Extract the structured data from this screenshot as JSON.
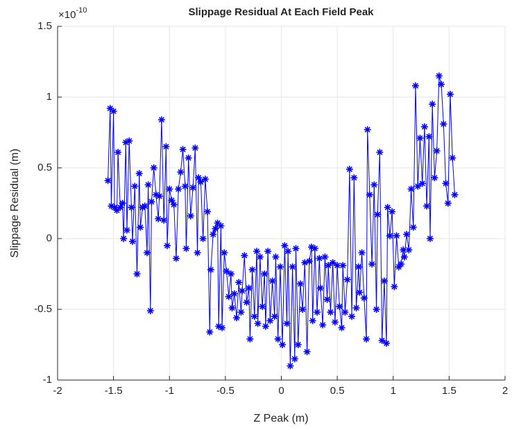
{
  "chart_data": {
    "type": "line",
    "title": "Slippage Residual At Each Field Peak",
    "x_label": "Z Peak (m)",
    "y_label": "Slippage Residual (m)",
    "y_multiplier_base": "×10",
    "y_multiplier_exponent": "-10",
    "color": "#0000ff",
    "marker": "asterisk",
    "grid": true,
    "xlim": [
      -2,
      2
    ],
    "xticks": [
      -2,
      -1.5,
      -1,
      -0.5,
      0,
      0.5,
      1,
      1.5,
      2
    ],
    "ylim": [
      -1,
      1.5
    ],
    "yticks": [
      -1,
      -0.5,
      0,
      0.5,
      1,
      1.5
    ],
    "x": [
      -1.55,
      -1.53,
      -1.52,
      -1.5,
      -1.49,
      -1.47,
      -1.46,
      -1.44,
      -1.42,
      -1.41,
      -1.39,
      -1.38,
      -1.36,
      -1.34,
      -1.33,
      -1.31,
      -1.29,
      -1.27,
      -1.26,
      -1.24,
      -1.22,
      -1.2,
      -1.19,
      -1.17,
      -1.16,
      -1.14,
      -1.12,
      -1.1,
      -1.09,
      -1.07,
      -1.05,
      -1.03,
      -1.02,
      -1.0,
      -0.98,
      -0.96,
      -0.94,
      -0.92,
      -0.9,
      -0.88,
      -0.86,
      -0.85,
      -0.83,
      -0.81,
      -0.79,
      -0.77,
      -0.75,
      -0.74,
      -0.72,
      -0.7,
      -0.68,
      -0.66,
      -0.64,
      -0.63,
      -0.61,
      -0.59,
      -0.57,
      -0.56,
      -0.54,
      -0.53,
      -0.51,
      -0.49,
      -0.47,
      -0.45,
      -0.44,
      -0.42,
      -0.4,
      -0.38,
      -0.36,
      -0.35,
      -0.33,
      -0.31,
      -0.29,
      -0.28,
      -0.26,
      -0.24,
      -0.22,
      -0.21,
      -0.19,
      -0.17,
      -0.15,
      -0.14,
      -0.12,
      -0.1,
      -0.08,
      -0.06,
      -0.05,
      -0.03,
      -0.01,
      0.01,
      0.03,
      0.05,
      0.06,
      0.08,
      0.1,
      0.12,
      0.13,
      0.15,
      0.17,
      0.19,
      0.21,
      0.23,
      0.25,
      0.27,
      0.28,
      0.3,
      0.32,
      0.34,
      0.35,
      0.37,
      0.39,
      0.41,
      0.42,
      0.44,
      0.46,
      0.48,
      0.5,
      0.52,
      0.54,
      0.55,
      0.57,
      0.59,
      0.61,
      0.63,
      0.65,
      0.67,
      0.69,
      0.7,
      0.72,
      0.74,
      0.76,
      0.77,
      0.79,
      0.81,
      0.83,
      0.85,
      0.86,
      0.88,
      0.9,
      0.92,
      0.94,
      0.95,
      0.97,
      0.99,
      1.01,
      1.03,
      1.05,
      1.07,
      1.09,
      1.1,
      1.12,
      1.14,
      1.16,
      1.18,
      1.2,
      1.22,
      1.24,
      1.26,
      1.28,
      1.3,
      1.32,
      1.33,
      1.35,
      1.37,
      1.39,
      1.41,
      1.43,
      1.45,
      1.47,
      1.49,
      1.51,
      1.53,
      1.55
    ],
    "values": [
      0.41,
      0.92,
      0.23,
      0.9,
      0.22,
      0.2,
      0.61,
      0.22,
      0.25,
      0.0,
      0.68,
      0.06,
      0.69,
      0.22,
      -0.02,
      0.37,
      -0.25,
      0.46,
      0.08,
      0.22,
      0.23,
      -0.1,
      0.38,
      -0.51,
      0.26,
      0.5,
      0.31,
      0.14,
      0.3,
      0.84,
      0.13,
      0.65,
      -0.05,
      0.35,
      0.27,
      0.24,
      -0.14,
      0.35,
      0.47,
      0.63,
      0.37,
      -0.07,
      0.57,
      0.16,
      0.36,
      0.64,
      -0.1,
      0.43,
      0.4,
      0.0,
      0.42,
      0.19,
      -0.66,
      -0.22,
      0.03,
      0.07,
      0.11,
      -0.62,
      0.09,
      -0.63,
      -0.1,
      -0.23,
      -0.41,
      -0.25,
      -0.49,
      -0.39,
      -0.56,
      -0.31,
      -0.52,
      -0.37,
      -0.12,
      -0.45,
      -0.35,
      -0.71,
      -0.22,
      -0.55,
      -0.09,
      -0.6,
      -0.13,
      -0.48,
      -0.25,
      -0.62,
      -0.09,
      -0.58,
      -0.3,
      -0.55,
      -0.13,
      -0.71,
      -0.2,
      -0.75,
      -0.05,
      -0.6,
      -0.09,
      -0.9,
      -0.2,
      -0.85,
      -0.07,
      -0.75,
      -0.32,
      -0.5,
      -0.17,
      -0.8,
      -0.16,
      -0.06,
      -0.58,
      -0.07,
      -0.52,
      -0.14,
      -0.35,
      -0.61,
      -0.13,
      -0.43,
      -0.19,
      -0.52,
      -0.17,
      -0.59,
      -0.19,
      -0.48,
      -0.63,
      -0.19,
      -0.52,
      -0.29,
      0.49,
      -0.55,
      0.43,
      -0.49,
      -0.2,
      -0.38,
      -0.1,
      -0.42,
      -0.71,
      0.77,
      0.31,
      -0.18,
      0.38,
      -0.5,
      0.17,
      0.61,
      -0.72,
      -0.3,
      -0.74,
      0.22,
      0.02,
      0.19,
      -0.34,
      0.02,
      -0.2,
      -0.18,
      -0.08,
      -0.13,
      0.03,
      -0.08,
      0.35,
      0.08,
      1.08,
      0.37,
      0.71,
      0.39,
      0.79,
      0.23,
      0.72,
      0.0,
      0.95,
      0.43,
      0.62,
      1.15,
      1.09,
      0.81,
      0.39,
      0.25,
      1.02,
      0.57,
      0.31
    ]
  }
}
